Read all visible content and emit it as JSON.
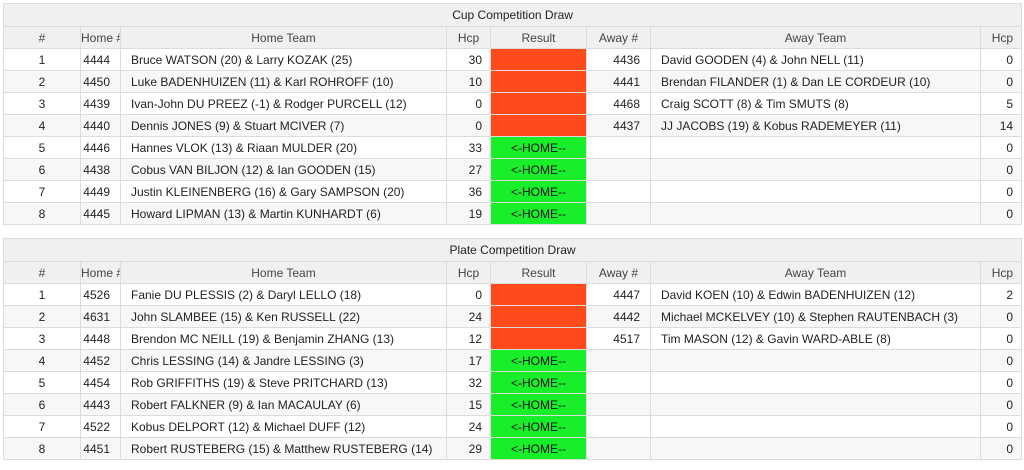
{
  "columns": {
    "num": "#",
    "home_id": "Home #",
    "home_team": "Home Team",
    "home_hcp": "Hcp",
    "result": "Result",
    "away_id": "Away #",
    "away_team": "Away Team",
    "away_hcp": "Hcp"
  },
  "colors": {
    "lose": "#ff4a1c",
    "home_win": "#19ee2a"
  },
  "cup": {
    "title": "Cup Competition Draw",
    "rows": [
      {
        "num": "1",
        "home_id": "4444",
        "home_team": "Bruce WATSON (20) & Larry KOZAK (25)",
        "home_hcp": "30",
        "result": "",
        "result_status": "lose",
        "away_id": "4436",
        "away_team": "David GOODEN (4) & John NELL (11)",
        "away_hcp": "0"
      },
      {
        "num": "2",
        "home_id": "4450",
        "home_team": "Luke BADENHUIZEN (11) & Karl ROHROFF (10)",
        "home_hcp": "10",
        "result": "",
        "result_status": "lose",
        "away_id": "4441",
        "away_team": "Brendan FILANDER (1) & Dan LE CORDEUR (10)",
        "away_hcp": "0"
      },
      {
        "num": "3",
        "home_id": "4439",
        "home_team": "Ivan-John DU PREEZ (-1) & Rodger PURCELL (12)",
        "home_hcp": "0",
        "result": "",
        "result_status": "lose",
        "away_id": "4468",
        "away_team": "Craig SCOTT (8) & Tim SMUTS (8)",
        "away_hcp": "5"
      },
      {
        "num": "4",
        "home_id": "4440",
        "home_team": "Dennis JONES (9) & Stuart MCIVER (7)",
        "home_hcp": "0",
        "result": "",
        "result_status": "lose",
        "away_id": "4437",
        "away_team": "JJ JACOBS (19) & Kobus RADEMEYER (11)",
        "away_hcp": "14"
      },
      {
        "num": "5",
        "home_id": "4446",
        "home_team": "Hannes VLOK (13) & Riaan MULDER (20)",
        "home_hcp": "33",
        "result": "<-HOME--",
        "result_status": "home",
        "away_id": "",
        "away_team": "",
        "away_hcp": "0"
      },
      {
        "num": "6",
        "home_id": "4438",
        "home_team": "Cobus VAN BILJON (12) & Ian GOODEN (15)",
        "home_hcp": "27",
        "result": "<-HOME--",
        "result_status": "home",
        "away_id": "",
        "away_team": "",
        "away_hcp": "0"
      },
      {
        "num": "7",
        "home_id": "4449",
        "home_team": "Justin KLEINENBERG (16) & Gary SAMPSON (20)",
        "home_hcp": "36",
        "result": "<-HOME--",
        "result_status": "home",
        "away_id": "",
        "away_team": "",
        "away_hcp": "0"
      },
      {
        "num": "8",
        "home_id": "4445",
        "home_team": "Howard LIPMAN (13) & Martin KUNHARDT (6)",
        "home_hcp": "19",
        "result": "<-HOME--",
        "result_status": "home",
        "away_id": "",
        "away_team": "",
        "away_hcp": "0"
      }
    ]
  },
  "plate": {
    "title": "Plate Competition Draw",
    "rows": [
      {
        "num": "1",
        "home_id": "4526",
        "home_team": "Fanie DU PLESSIS (2) & Daryl LELLO (18)",
        "home_hcp": "0",
        "result": "",
        "result_status": "lose",
        "away_id": "4447",
        "away_team": "David KOEN (10) & Edwin BADENHUIZEN (12)",
        "away_hcp": "2"
      },
      {
        "num": "2",
        "home_id": "4631",
        "home_team": "John SLAMBEE (15) & Ken RUSSELL (22)",
        "home_hcp": "24",
        "result": "",
        "result_status": "lose",
        "away_id": "4442",
        "away_team": "Michael MCKELVEY (10) & Stephen RAUTENBACH (3)",
        "away_hcp": "0"
      },
      {
        "num": "3",
        "home_id": "4448",
        "home_team": "Brendon MC NEILL (19) & Benjamin ZHANG (13)",
        "home_hcp": "12",
        "result": "",
        "result_status": "lose",
        "away_id": "4517",
        "away_team": "Tim MASON (12) & Gavin WARD-ABLE (8)",
        "away_hcp": "0"
      },
      {
        "num": "4",
        "home_id": "4452",
        "home_team": "Chris LESSING (14) & Jandre LESSING (3)",
        "home_hcp": "17",
        "result": "<-HOME--",
        "result_status": "home",
        "away_id": "",
        "away_team": "",
        "away_hcp": "0"
      },
      {
        "num": "5",
        "home_id": "4454",
        "home_team": "Rob GRIFFITHS (19) & Steve PRITCHARD (13)",
        "home_hcp": "32",
        "result": "<-HOME--",
        "result_status": "home",
        "away_id": "",
        "away_team": "",
        "away_hcp": "0"
      },
      {
        "num": "6",
        "home_id": "4443",
        "home_team": "Robert FALKNER (9) & Ian MACAULAY (6)",
        "home_hcp": "15",
        "result": "<-HOME--",
        "result_status": "home",
        "away_id": "",
        "away_team": "",
        "away_hcp": "0"
      },
      {
        "num": "7",
        "home_id": "4522",
        "home_team": "Kobus DELPORT (12) & Michael DUFF (12)",
        "home_hcp": "24",
        "result": "<-HOME--",
        "result_status": "home",
        "away_id": "",
        "away_team": "",
        "away_hcp": "0"
      },
      {
        "num": "8",
        "home_id": "4451",
        "home_team": "Robert RUSTEBERG (15) & Matthew RUSTEBERG (14)",
        "home_hcp": "29",
        "result": "<-HOME--",
        "result_status": "home",
        "away_id": "",
        "away_team": "",
        "away_hcp": "0"
      }
    ]
  }
}
